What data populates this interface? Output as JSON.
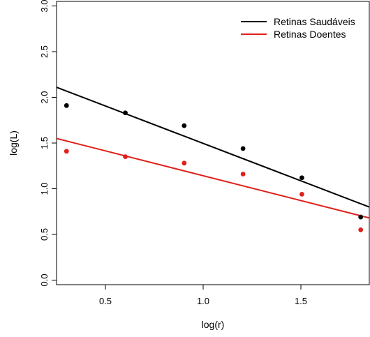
{
  "chart_data": {
    "type": "scatter",
    "xlabel": "log(r)",
    "ylabel": "log(L)",
    "xlim": [
      0.25,
      1.85
    ],
    "ylim": [
      -0.05,
      3.05
    ],
    "x_ticks": [
      0.5,
      1.0,
      1.5
    ],
    "x_tick_labels": [
      "0.5",
      "1.0",
      "1.5"
    ],
    "y_ticks": [
      0.0,
      0.5,
      1.0,
      1.5,
      2.0,
      2.5,
      3.0
    ],
    "y_tick_labels": [
      "0.0",
      "0.5",
      "1.0",
      "1.5",
      "2.0",
      "2.5",
      "3.0"
    ],
    "grid": false,
    "legend_position": "top-right",
    "series": [
      {
        "name": "Retinas Saudáveis",
        "color": "#000000",
        "points": [
          {
            "x": 0.301,
            "y": 1.91
          },
          {
            "x": 0.602,
            "y": 1.83
          },
          {
            "x": 0.903,
            "y": 1.69
          },
          {
            "x": 1.204,
            "y": 1.44
          },
          {
            "x": 1.505,
            "y": 1.12
          },
          {
            "x": 1.806,
            "y": 0.69
          }
        ],
        "fit_line": [
          {
            "x": 0.25,
            "y": 2.11
          },
          {
            "x": 1.85,
            "y": 0.8
          }
        ]
      },
      {
        "name": "Retinas Doentes",
        "color": "#e0201b",
        "points": [
          {
            "x": 0.301,
            "y": 1.41
          },
          {
            "x": 0.602,
            "y": 1.35
          },
          {
            "x": 0.903,
            "y": 1.28
          },
          {
            "x": 1.204,
            "y": 1.16
          },
          {
            "x": 1.505,
            "y": 0.94
          },
          {
            "x": 1.806,
            "y": 0.55
          }
        ],
        "fit_line": [
          {
            "x": 0.25,
            "y": 1.55
          },
          {
            "x": 1.85,
            "y": 0.68
          }
        ]
      }
    ]
  }
}
